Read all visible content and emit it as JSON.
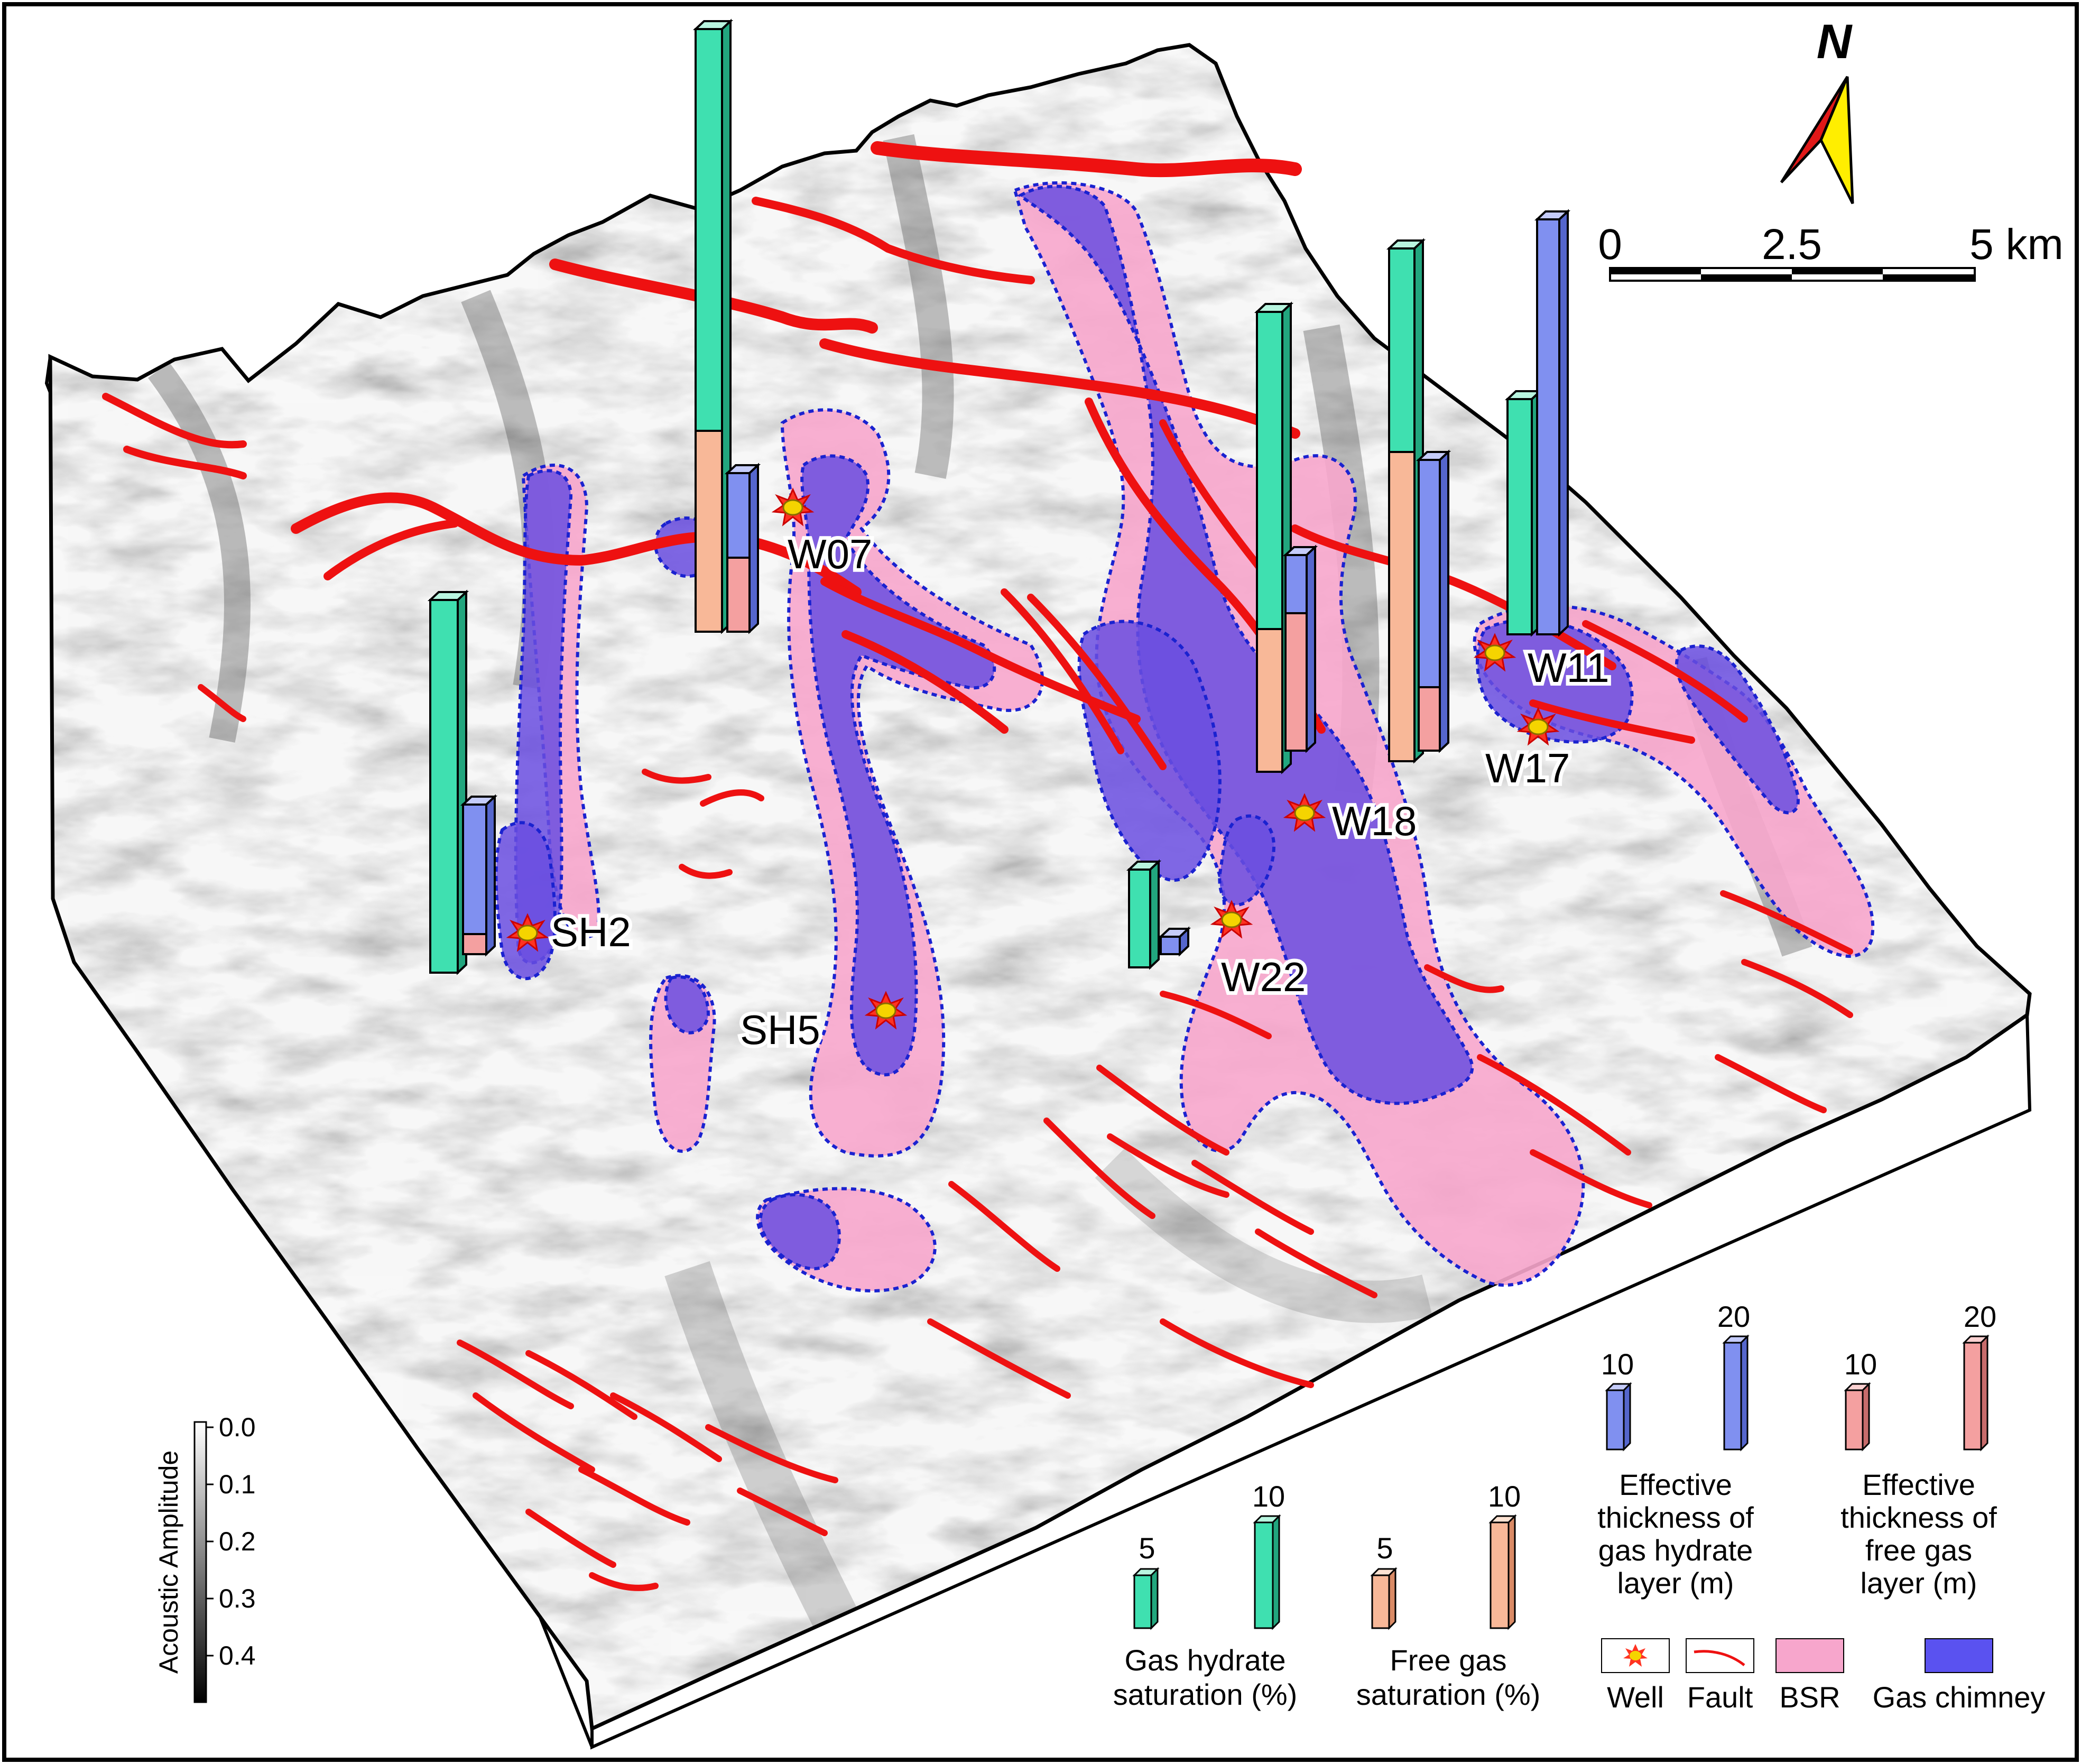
{
  "wells": [
    {
      "id": "SH2"
    },
    {
      "id": "SH5"
    },
    {
      "id": "W07"
    },
    {
      "id": "W11"
    },
    {
      "id": "W17"
    },
    {
      "id": "W18"
    },
    {
      "id": "W22"
    }
  ],
  "north_arrow": {
    "label": "N"
  },
  "scale_bar": {
    "ticks": [
      "0",
      "2.5",
      "5 km"
    ]
  },
  "colorbar": {
    "title": "Acoustic Amplitude",
    "ticks": [
      "0.0",
      "0.1",
      "0.2",
      "0.3",
      "0.4"
    ]
  },
  "legend": {
    "hydrate_thickness": {
      "small": "10",
      "large": "20",
      "caption": [
        "Effective",
        "thickness of",
        "gas hydrate",
        "layer (m)"
      ]
    },
    "freegas_thickness": {
      "small": "10",
      "large": "20",
      "caption": [
        "Effective",
        "thickness of",
        "free gas",
        "layer (m)"
      ]
    },
    "hydrate_saturation": {
      "small": "5",
      "large": "10",
      "caption": [
        "Gas hydrate",
        "saturation (%)"
      ]
    },
    "freegas_saturation": {
      "small": "5",
      "large": "10",
      "caption": [
        "Free gas",
        "saturation (%)"
      ]
    },
    "symbols": [
      {
        "label": "Well"
      },
      {
        "label": "Fault"
      },
      {
        "label": "BSR"
      },
      {
        "label": "Gas chimney"
      }
    ]
  },
  "colors": {
    "hydrate_saturation": "#3fe0b0",
    "freegas_saturation": "#f8b898",
    "hydrate_thickness": "#8090f0",
    "freegas_thickness": "#f4a0a0",
    "bsr": "#f7a6cc",
    "gas_chimney": "#6a4ee0",
    "fault": "#ee1111",
    "well": "#f5d400"
  }
}
